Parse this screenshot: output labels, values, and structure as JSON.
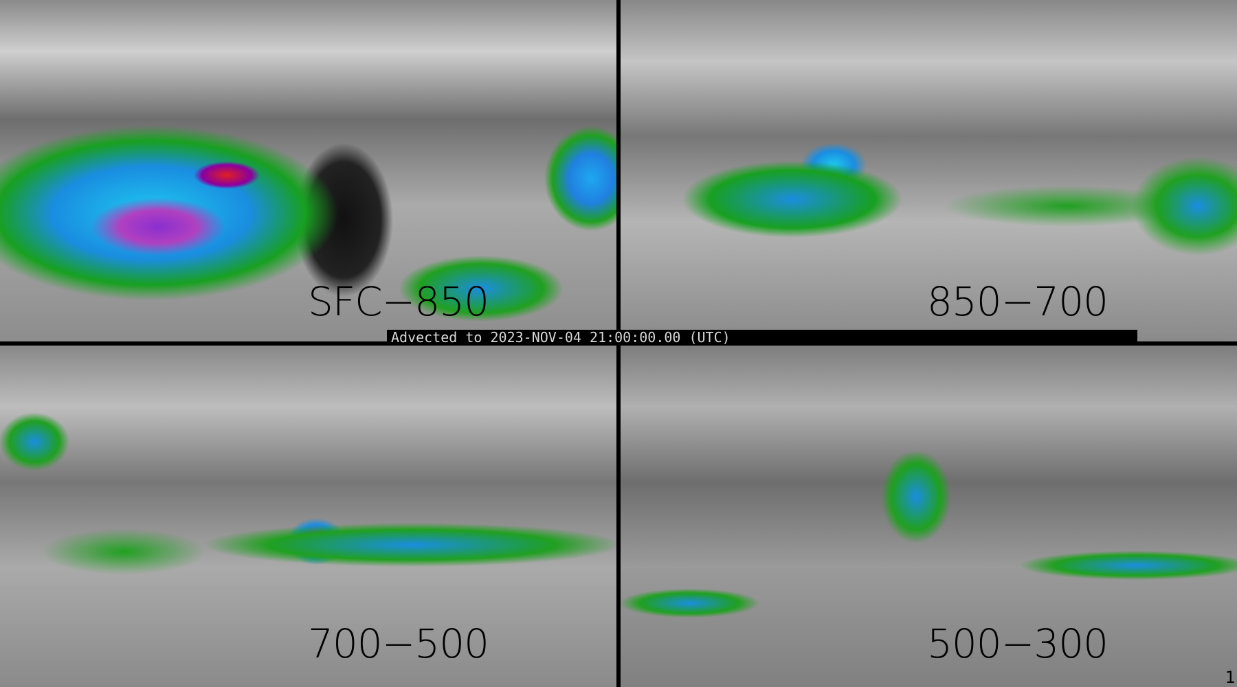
{
  "panels": [
    {
      "label": "SFC−850"
    },
    {
      "label": "850−700"
    },
    {
      "label": "700−500"
    },
    {
      "label": "500−300"
    }
  ],
  "banner": "Advected to 2023-NOV-04 21:00:00.00 (UTC)",
  "corner_text": "1",
  "colors": {
    "background": "#7a7a7a",
    "green": "#20a020",
    "blue": "#1a8de0",
    "cyan": "#1ec8f0",
    "purple": "#8a2fd0",
    "red": "#e02020",
    "separator": "#000000"
  }
}
